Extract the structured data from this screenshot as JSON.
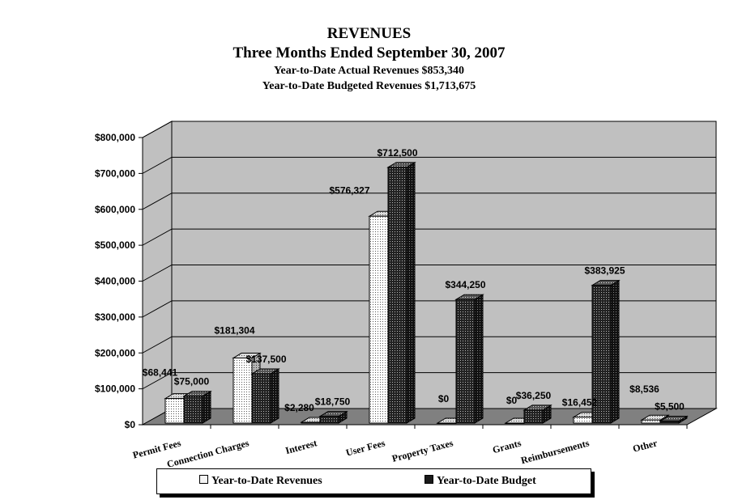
{
  "header": {
    "title": "REVENUES",
    "subtitle": "Three Months Ended September 30, 2007",
    "line_actual": "Year-to-Date Actual Revenues $853,340",
    "line_budget": "Year-to-Date Budgeted Revenues $1,713,675"
  },
  "colors": {
    "revenues_fill": "#f4f4f4",
    "budget_fill": "#1a1a1a",
    "back_wall": "#c0c0c0",
    "floor": "#808080"
  },
  "chart_data": {
    "type": "bar",
    "style": "3d-clustered",
    "categories": [
      "Permit Fees",
      "Connection Charges",
      "Interest",
      "User Fees",
      "Property Taxes",
      "Grants",
      "Reimbursements",
      "Other"
    ],
    "ylim": [
      0,
      800000
    ],
    "yticks": [
      0,
      100000,
      200000,
      300000,
      400000,
      500000,
      600000,
      700000,
      800000
    ],
    "ytick_labels": [
      "$0",
      "$100,000",
      "$200,000",
      "$300,000",
      "$400,000",
      "$500,000",
      "$600,000",
      "$700,000",
      "$800,000"
    ],
    "grid": true,
    "legend_position": "bottom",
    "series": [
      {
        "name": "Year-to-Date Revenues",
        "values": [
          68441,
          181304,
          2280,
          576327,
          0,
          0,
          16452,
          8536
        ],
        "labels": [
          "$68,441",
          "$181,304",
          "$2,280",
          "$576,327",
          "$0",
          "$0",
          "$16,452",
          "$8,536"
        ]
      },
      {
        "name": "Year-to-Date Budget",
        "values": [
          75000,
          137500,
          18750,
          712500,
          344250,
          36250,
          383925,
          5500
        ],
        "labels": [
          "$75,000",
          "$137,500",
          "$18,750",
          "$712,500",
          "$344,250",
          "$36,250",
          "$383,925",
          "$5,500"
        ]
      }
    ]
  }
}
